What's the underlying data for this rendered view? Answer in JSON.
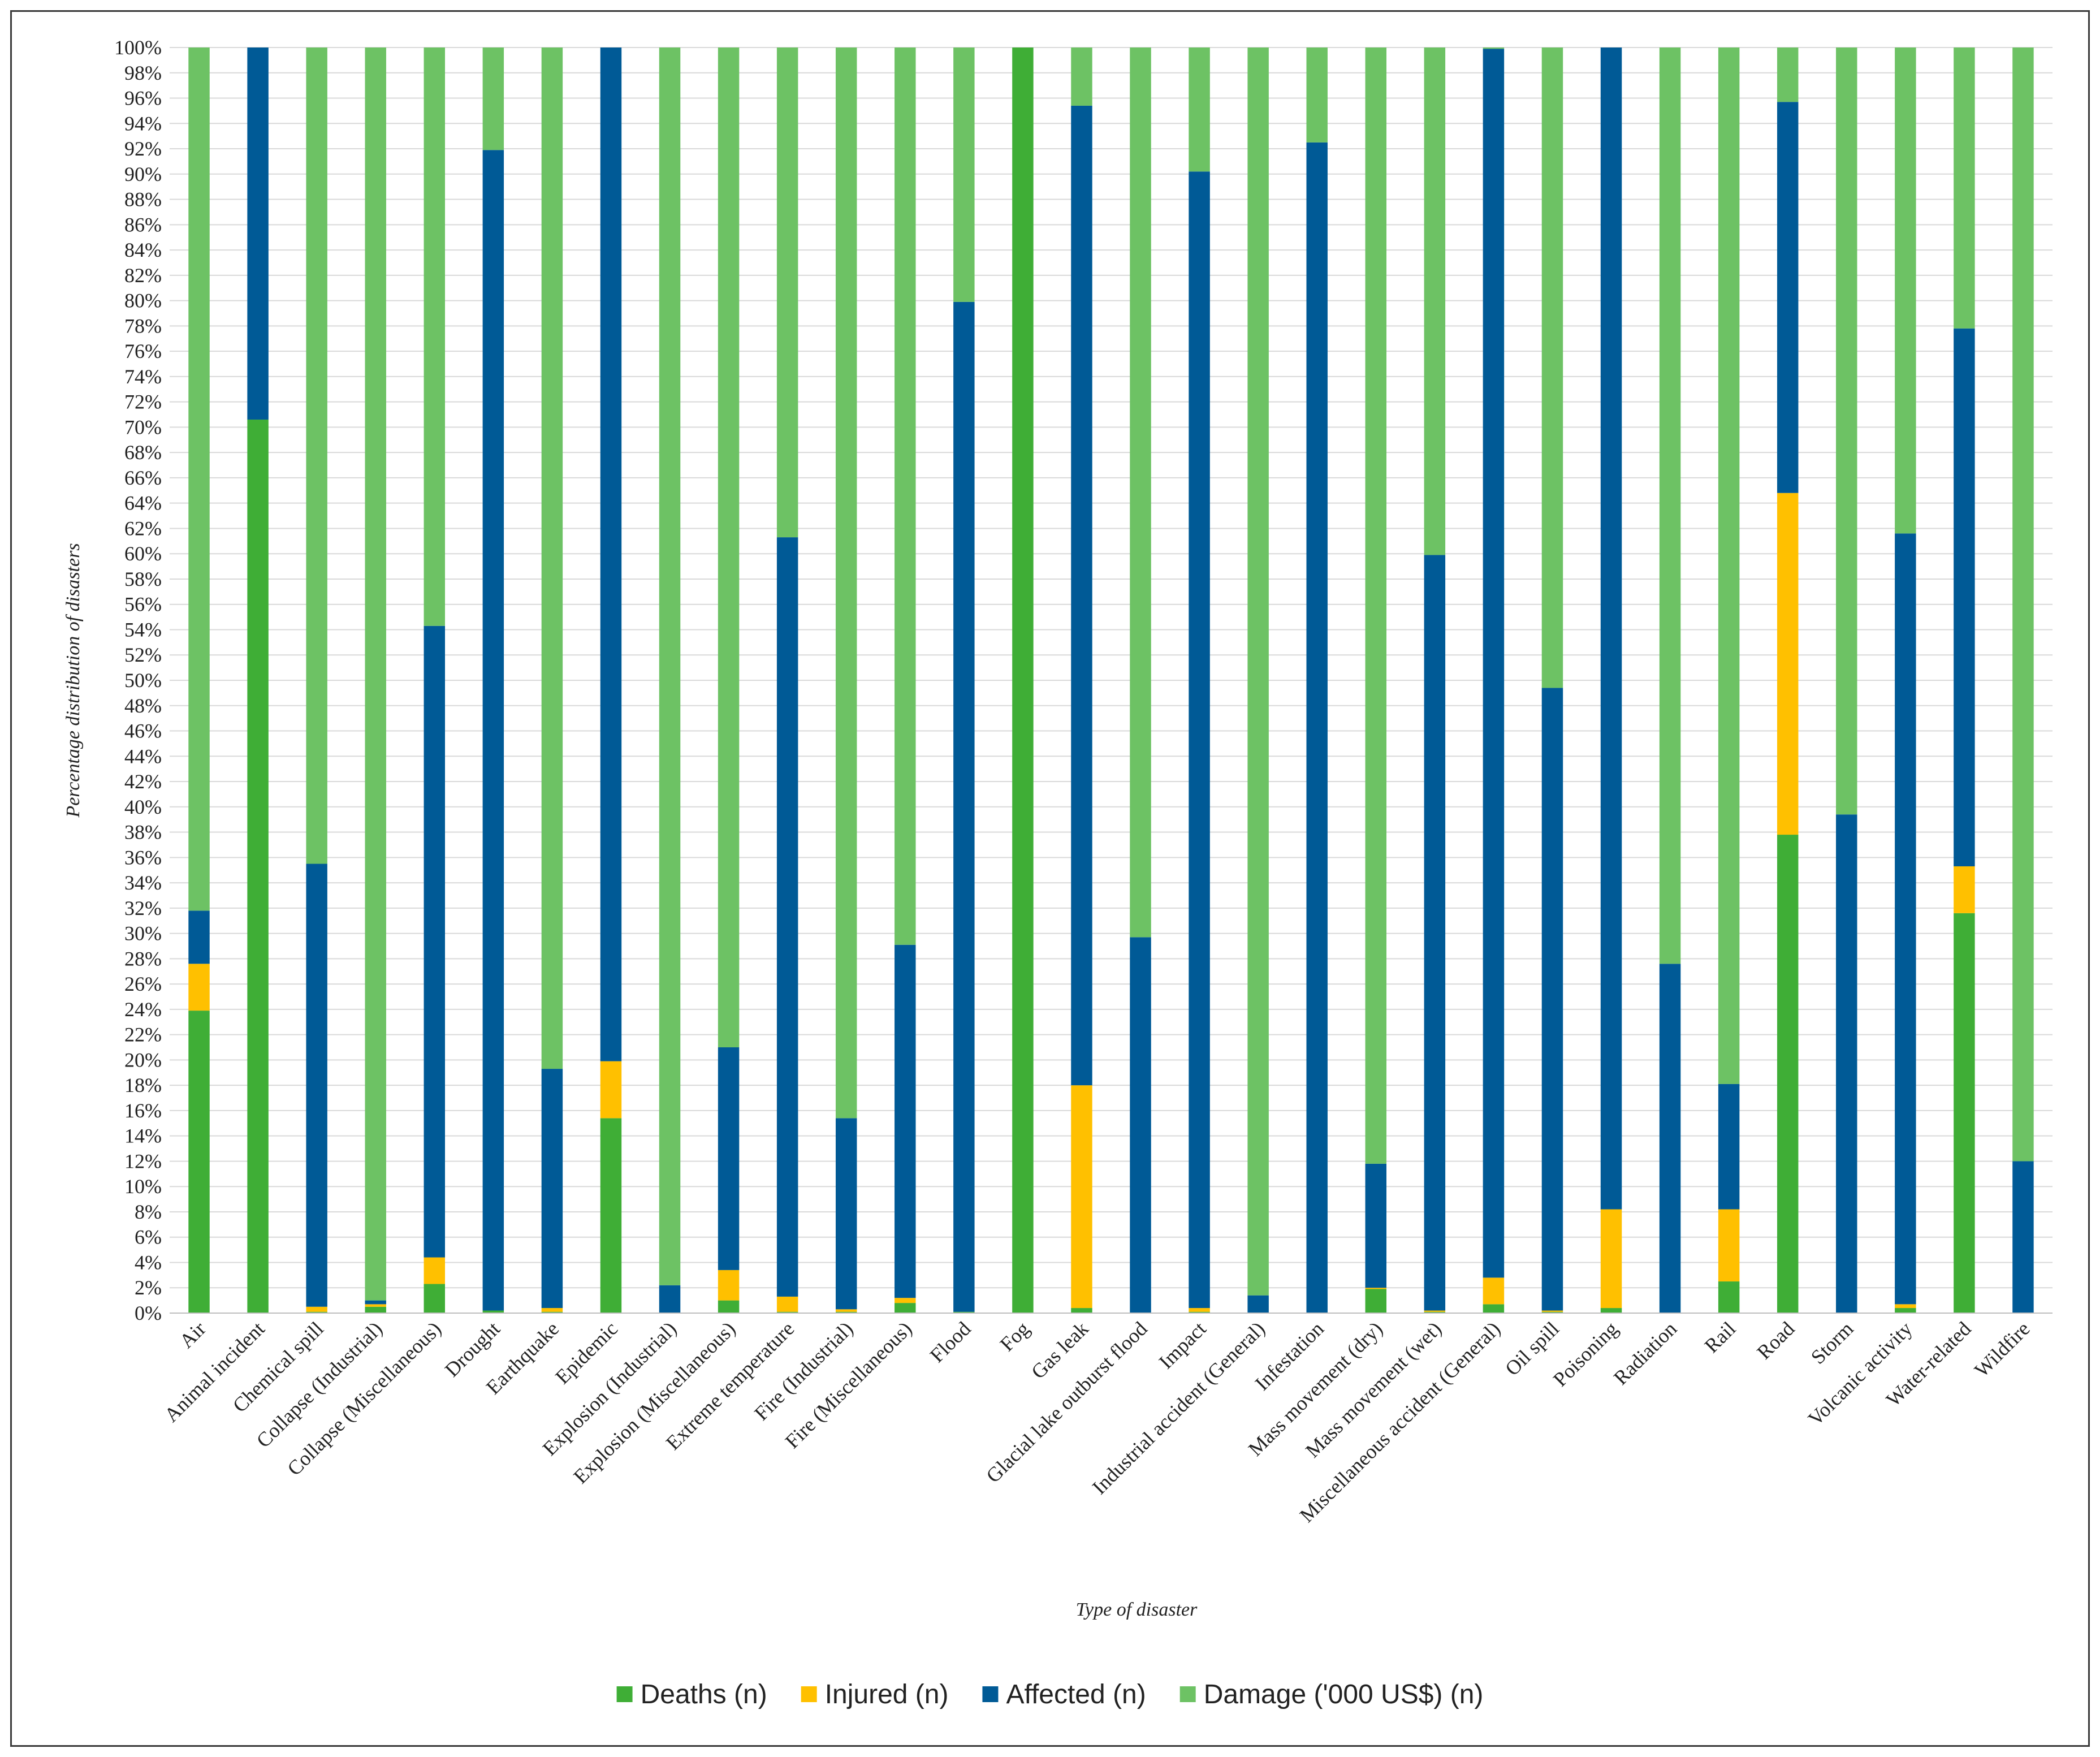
{
  "chart_data": {
    "type": "bar",
    "stacked": true,
    "percent": true,
    "xlabel": "Type of disaster",
    "ylabel": "Percentage distribution of disasters",
    "ylim": [
      0,
      100
    ],
    "yticks": [
      "0%",
      "2%",
      "4%",
      "6%",
      "8%",
      "10%",
      "12%",
      "14%",
      "16%",
      "18%",
      "20%",
      "22%",
      "24%",
      "26%",
      "28%",
      "30%",
      "32%",
      "34%",
      "36%",
      "38%",
      "40%",
      "42%",
      "44%",
      "46%",
      "48%",
      "50%",
      "52%",
      "54%",
      "56%",
      "58%",
      "60%",
      "62%",
      "64%",
      "66%",
      "68%",
      "70%",
      "72%",
      "74%",
      "76%",
      "78%",
      "80%",
      "82%",
      "84%",
      "86%",
      "88%",
      "90%",
      "92%",
      "94%",
      "96%",
      "98%",
      "100%"
    ],
    "legend_position": "bottom",
    "categories": [
      "Air",
      "Animal incident",
      "Chemical spill",
      "Collapse (Industrial)",
      "Collapse (Miscellaneous)",
      "Drought",
      "Earthquake",
      "Epidemic",
      "Explosion (Industrial)",
      "Explosion (Miscellaneous)",
      "Extreme temperature",
      "Fire (Industrial)",
      "Fire (Miscellaneous)",
      "Flood",
      "Fog",
      "Gas leak",
      "Glacial lake outburst flood",
      "Impact",
      "Industrial accident (General)",
      "Infestation",
      "Mass movement (dry)",
      "Mass movement (wet)",
      "Miscellaneous accident (General)",
      "Oil spill",
      "Poisoning",
      "Radiation",
      "Rail",
      "Road",
      "Storm",
      "Volcanic activity",
      "Water-related",
      "Wildfire"
    ],
    "series": [
      {
        "name": "Deaths (n)",
        "color": "#3fae36",
        "values": [
          23.9,
          70.6,
          0.1,
          0.5,
          2.3,
          0.2,
          0.1,
          15.4,
          0.0,
          1.0,
          0.1,
          0.1,
          0.8,
          0.1,
          100.0,
          0.4,
          0.0,
          0.1,
          0.0,
          0.0,
          1.9,
          0.1,
          0.7,
          0.1,
          0.4,
          0.0,
          2.5,
          37.8,
          0.0,
          0.4,
          31.6,
          0.0
        ]
      },
      {
        "name": "Injured (n)",
        "color": "#ffc000",
        "values": [
          3.7,
          0.0,
          0.4,
          0.2,
          2.1,
          0.0,
          0.3,
          4.5,
          0.0,
          2.4,
          1.2,
          0.2,
          0.4,
          0.0,
          0.0,
          17.6,
          0.0,
          0.3,
          0.0,
          0.0,
          0.1,
          0.1,
          2.1,
          0.1,
          7.8,
          0.0,
          5.7,
          27.0,
          0.0,
          0.3,
          3.7,
          0.0
        ]
      },
      {
        "name": "Affected (n)",
        "color": "#005a96",
        "values": [
          4.2,
          29.4,
          35.0,
          0.3,
          49.9,
          91.7,
          18.9,
          80.1,
          2.2,
          17.6,
          60.0,
          15.1,
          27.9,
          79.8,
          0.0,
          77.4,
          29.7,
          89.8,
          1.4,
          92.5,
          9.8,
          59.7,
          97.1,
          49.2,
          91.8,
          27.6,
          9.9,
          30.9,
          39.4,
          60.9,
          42.5,
          12.0
        ]
      },
      {
        "name": "Damage ('000 US$) (n)",
        "color": "#6dc264",
        "values": [
          68.2,
          0.0,
          64.5,
          99.0,
          45.7,
          8.1,
          80.7,
          0.0,
          97.8,
          79.0,
          38.7,
          84.6,
          70.9,
          20.1,
          0.0,
          4.6,
          70.3,
          9.8,
          98.6,
          7.5,
          88.2,
          40.1,
          0.1,
          50.6,
          0.0,
          72.4,
          81.9,
          4.3,
          60.6,
          38.4,
          22.2,
          88.0
        ]
      }
    ]
  }
}
